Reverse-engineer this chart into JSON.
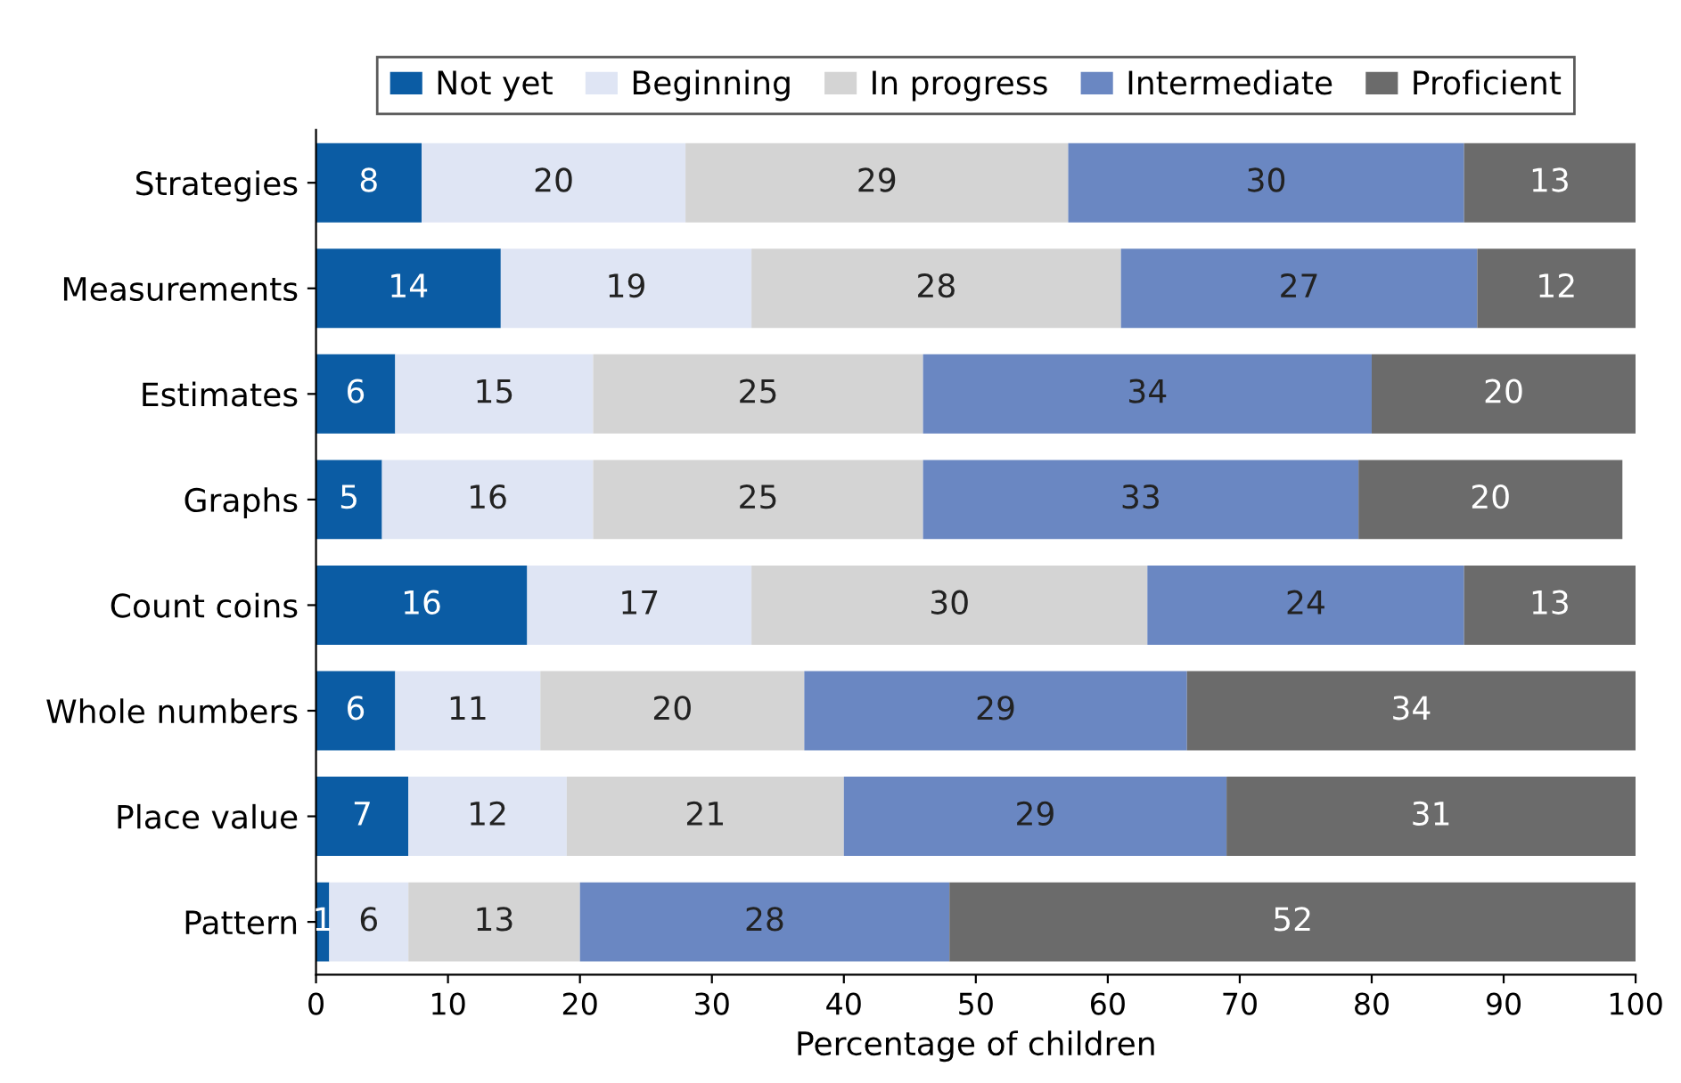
{
  "chart_data": {
    "type": "bar",
    "orientation": "horizontal",
    "stacked": true,
    "xlabel": "Percentage of children",
    "categories": [
      "Strategies",
      "Measurements",
      "Estimates",
      "Graphs",
      "Count coins",
      "Whole numbers",
      "Place value",
      "Pattern"
    ],
    "series": [
      {
        "name": "Not yet",
        "color": "#0b5ca4",
        "values": [
          8,
          14,
          6,
          5,
          16,
          6,
          7,
          1
        ]
      },
      {
        "name": "Beginning",
        "color": "#dfe5f4",
        "values": [
          20,
          19,
          15,
          16,
          17,
          11,
          12,
          6
        ]
      },
      {
        "name": "In progress",
        "color": "#d4d4d4",
        "values": [
          29,
          28,
          25,
          25,
          30,
          20,
          21,
          13
        ]
      },
      {
        "name": "Intermediate",
        "color": "#6a87c2",
        "values": [
          30,
          27,
          34,
          33,
          24,
          29,
          29,
          28
        ]
      },
      {
        "name": "Proficient",
        "color": "#6b6b6b",
        "values": [
          13,
          12,
          20,
          20,
          13,
          34,
          31,
          52
        ]
      }
    ],
    "xlim": [
      0,
      100
    ],
    "xticks": [
      0,
      10,
      20,
      30,
      40,
      50,
      60,
      70,
      80,
      90,
      100
    ],
    "data_labels": true,
    "legend": "top",
    "grid": false
  }
}
